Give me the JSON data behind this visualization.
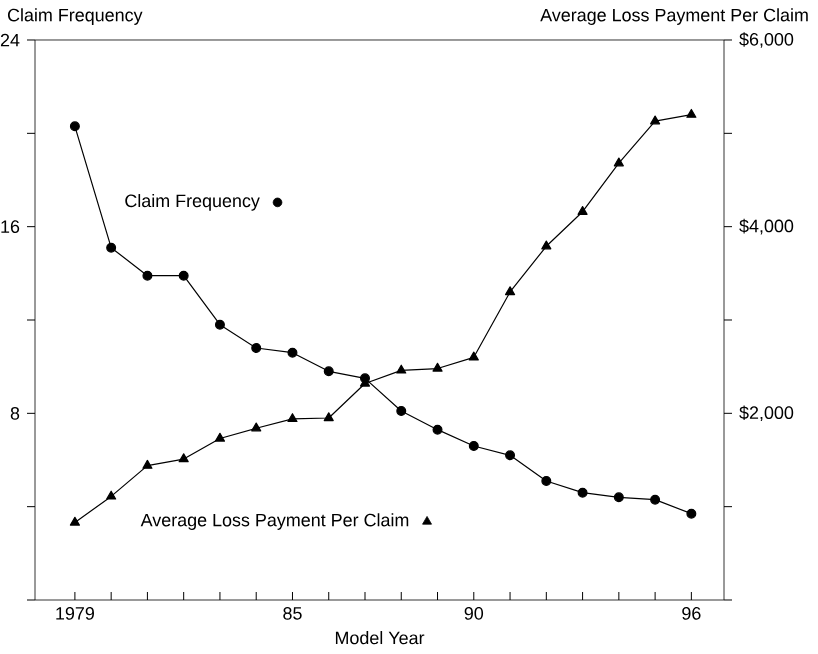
{
  "chart_data": {
    "type": "line",
    "xlabel": "Model Year",
    "ylabel": "Claim Frequency",
    "y2label": "Average Loss Payment Per Claim",
    "x": [
      1979,
      1980,
      1981,
      1982,
      1983,
      1984,
      1985,
      1986,
      1987,
      1988,
      1989,
      1990,
      1991,
      1992,
      1993,
      1994,
      1995,
      1996
    ],
    "series": [
      {
        "name": "Claim Frequency",
        "color": "#000000",
        "marker": "circle",
        "values": [
          20.3,
          15.1,
          13.9,
          13.9,
          11.8,
          10.8,
          10.6,
          9.8,
          9.5,
          8.1,
          7.3,
          6.6,
          6.2,
          5.1,
          4.6,
          4.4,
          4.3,
          3.7
        ]
      },
      {
        "name": "Average Loss Payment Per Claim",
        "color": "#000000",
        "marker": "triangle",
        "axis": "y2",
        "values": [
          830,
          1110,
          1440,
          1510,
          1730,
          1840,
          1940,
          1950,
          2320,
          2460,
          2480,
          2600,
          3300,
          3790,
          4160,
          4680,
          5130,
          5200
        ]
      }
    ],
    "xlim": [
      1977.9,
      1996.9
    ],
    "xticks": [
      1979,
      {
        "value": 1980,
        "label": null
      },
      {
        "value": 1981,
        "label": null
      },
      {
        "value": 1982,
        "label": null
      },
      {
        "value": 1983,
        "label": null
      },
      {
        "value": 1984,
        "label": null
      },
      {
        "value": 1985,
        "label": "85"
      },
      {
        "value": 1986,
        "label": null
      },
      {
        "value": 1987,
        "label": null
      },
      {
        "value": 1988,
        "label": null
      },
      {
        "value": 1989,
        "label": null
      },
      {
        "value": 1990,
        "label": "90"
      },
      {
        "value": 1991,
        "label": null
      },
      {
        "value": 1992,
        "label": null
      },
      {
        "value": 1993,
        "label": null
      },
      {
        "value": 1994,
        "label": null
      },
      {
        "value": 1995,
        "label": null
      },
      {
        "value": 1996,
        "label": "96"
      }
    ],
    "ylim": [
      0,
      24
    ],
    "yticks": [
      {
        "value": 0,
        "label": null
      },
      {
        "value": 4,
        "label": null
      },
      8,
      {
        "value": 12,
        "label": null
      },
      16,
      {
        "value": 20,
        "label": null
      },
      24
    ],
    "y2lim": [
      0,
      6000
    ],
    "y2ticks": [
      {
        "value": 0,
        "label": null
      },
      {
        "value": 1000,
        "label": null
      },
      {
        "value": 2000,
        "label": "$2,000"
      },
      {
        "value": 3000,
        "label": null
      },
      {
        "value": 4000,
        "label": "$4,000"
      },
      {
        "value": 5000,
        "label": null
      },
      {
        "value": 6000,
        "label": "$6,000"
      }
    ],
    "line_style": "solid",
    "grid": false,
    "legend": "left"
  }
}
